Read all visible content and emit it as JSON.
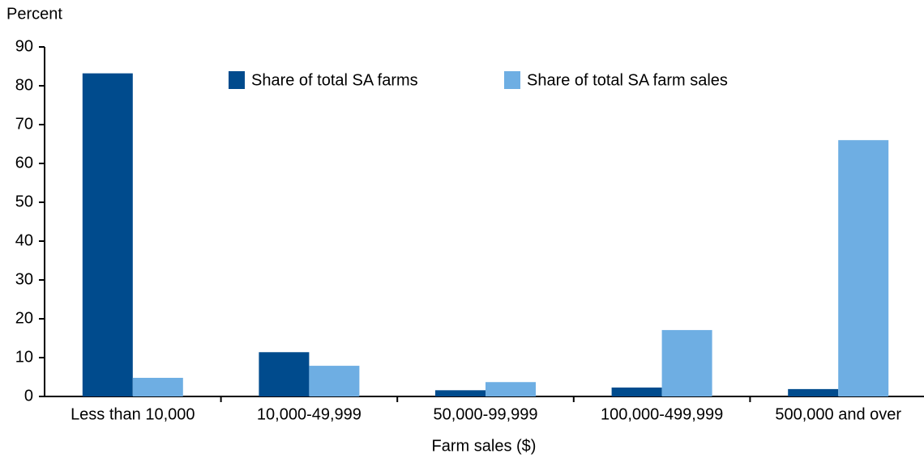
{
  "chart_data": {
    "type": "bar",
    "y_label": "Percent",
    "x_label": "Farm sales ($)",
    "categories": [
      "Less than 10,000",
      "10,000-49,999",
      "50,000-99,999",
      "100,000-499,999",
      "500,000 and over"
    ],
    "series": [
      {
        "name": "Share of total SA farms",
        "color": "#004b8d",
        "values": [
          83.2,
          11.4,
          1.6,
          2.3,
          1.9
        ]
      },
      {
        "name": "Share of total SA farm sales",
        "color": "#6eaee3",
        "values": [
          4.8,
          7.9,
          3.7,
          17.1,
          66.0
        ]
      }
    ],
    "ylim": [
      0,
      90
    ],
    "yticks": [
      0,
      10,
      20,
      30,
      40,
      50,
      60,
      70,
      80,
      90
    ]
  }
}
